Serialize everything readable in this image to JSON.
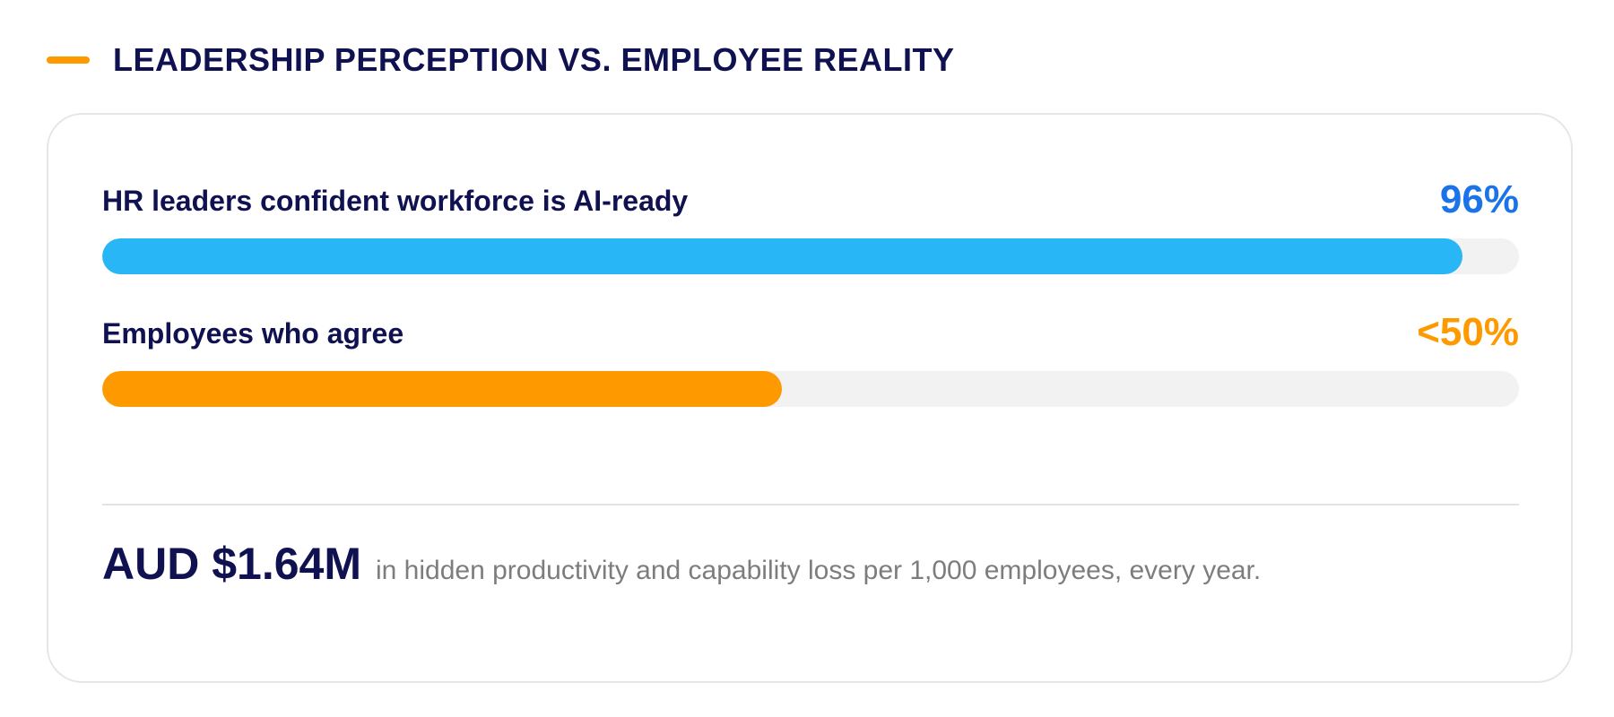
{
  "header": {
    "title": "LEADERSHIP PERCEPTION VS. EMPLOYEE REALITY"
  },
  "colors": {
    "accent": "#ff9900",
    "navy": "#0f1150",
    "blue_value": "#1a73e8",
    "blue_bar": "#29b6f6",
    "orange": "#ff9900",
    "track": "#f2f2f2"
  },
  "chart_data": {
    "type": "bar",
    "orientation": "horizontal",
    "unit": "%",
    "xlim": [
      0,
      100
    ],
    "categories": [
      "HR leaders confident workforce is AI-ready",
      "Employees who agree"
    ],
    "values": [
      96,
      48
    ],
    "value_labels": [
      "96%",
      "<50%"
    ],
    "bar_colors": [
      "#29b6f6",
      "#ff9900"
    ],
    "value_label_colors": [
      "#1a73e8",
      "#ff9900"
    ]
  },
  "footer": {
    "amount": "AUD $1.64M",
    "text": "in hidden productivity and capability loss per 1,000 employees, every year."
  }
}
